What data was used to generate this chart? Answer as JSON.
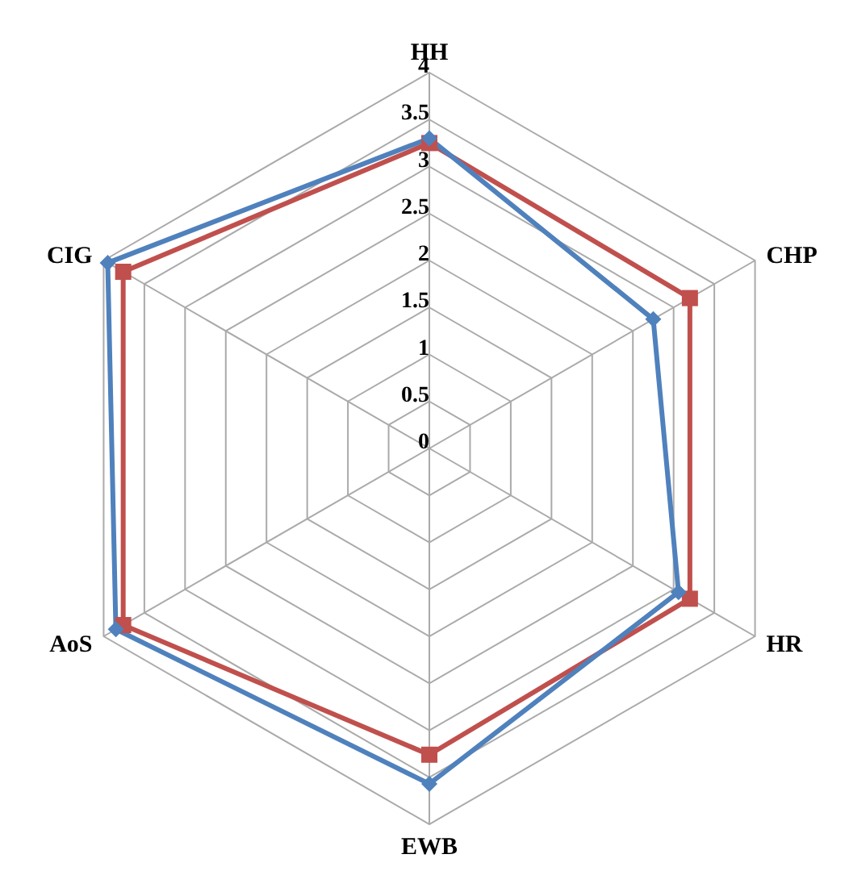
{
  "chart_data": {
    "type": "radar",
    "categories": [
      "HH",
      "CHP",
      "HR",
      "EWB",
      "AoS",
      "CIG"
    ],
    "series": [
      {
        "color": "#c0504d",
        "values": [
          3.25,
          3.2,
          3.2,
          3.26,
          3.76,
          3.76
        ],
        "marker": "square"
      },
      {
        "color": "#4f81bd",
        "values": [
          3.3,
          2.75,
          3.06,
          3.57,
          3.85,
          3.95
        ],
        "marker": "diamond"
      }
    ],
    "ylim": [
      0,
      4
    ],
    "yticks": [
      0,
      0.5,
      1,
      1.5,
      2,
      2.5,
      3,
      3.5,
      4
    ],
    "grid": true,
    "legend": false
  }
}
